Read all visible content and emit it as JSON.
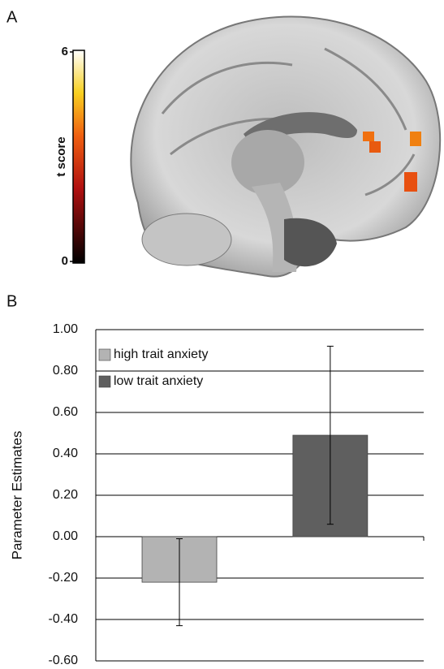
{
  "panel_a": {
    "label": "A",
    "colorbar": {
      "label": "t score",
      "lim": [
        0,
        6
      ],
      "ticks": [
        0,
        6
      ]
    }
  },
  "chart_data": {
    "type": "bar",
    "panel_label": "B",
    "ylabel": "Parameter Estimates",
    "categories": [
      null
    ],
    "series": [
      {
        "name": "high trait anxiety",
        "color": "#b3b3b3",
        "values": [
          -0.22
        ],
        "errors": [
          0.21
        ]
      },
      {
        "name": "low trait anxiety",
        "color": "#5f5f5f",
        "values": [
          0.49
        ],
        "errors": [
          0.43
        ]
      }
    ],
    "ylim": [
      -0.6,
      1.0
    ],
    "yticks": [
      {
        "value": -0.6,
        "label": "-0.60"
      },
      {
        "value": -0.4,
        "label": "-0.40"
      },
      {
        "value": -0.2,
        "label": "-0.20"
      },
      {
        "value": 0,
        "label": "0.00"
      },
      {
        "value": 0.2,
        "label": "0.20"
      },
      {
        "value": 0.4,
        "label": "0.40"
      },
      {
        "value": 0.6,
        "label": "0.60"
      },
      {
        "value": 0.8,
        "label": "0.80"
      },
      {
        "value": 1.0,
        "label": "1.00"
      }
    ],
    "grid": true,
    "legend": "top-left"
  }
}
